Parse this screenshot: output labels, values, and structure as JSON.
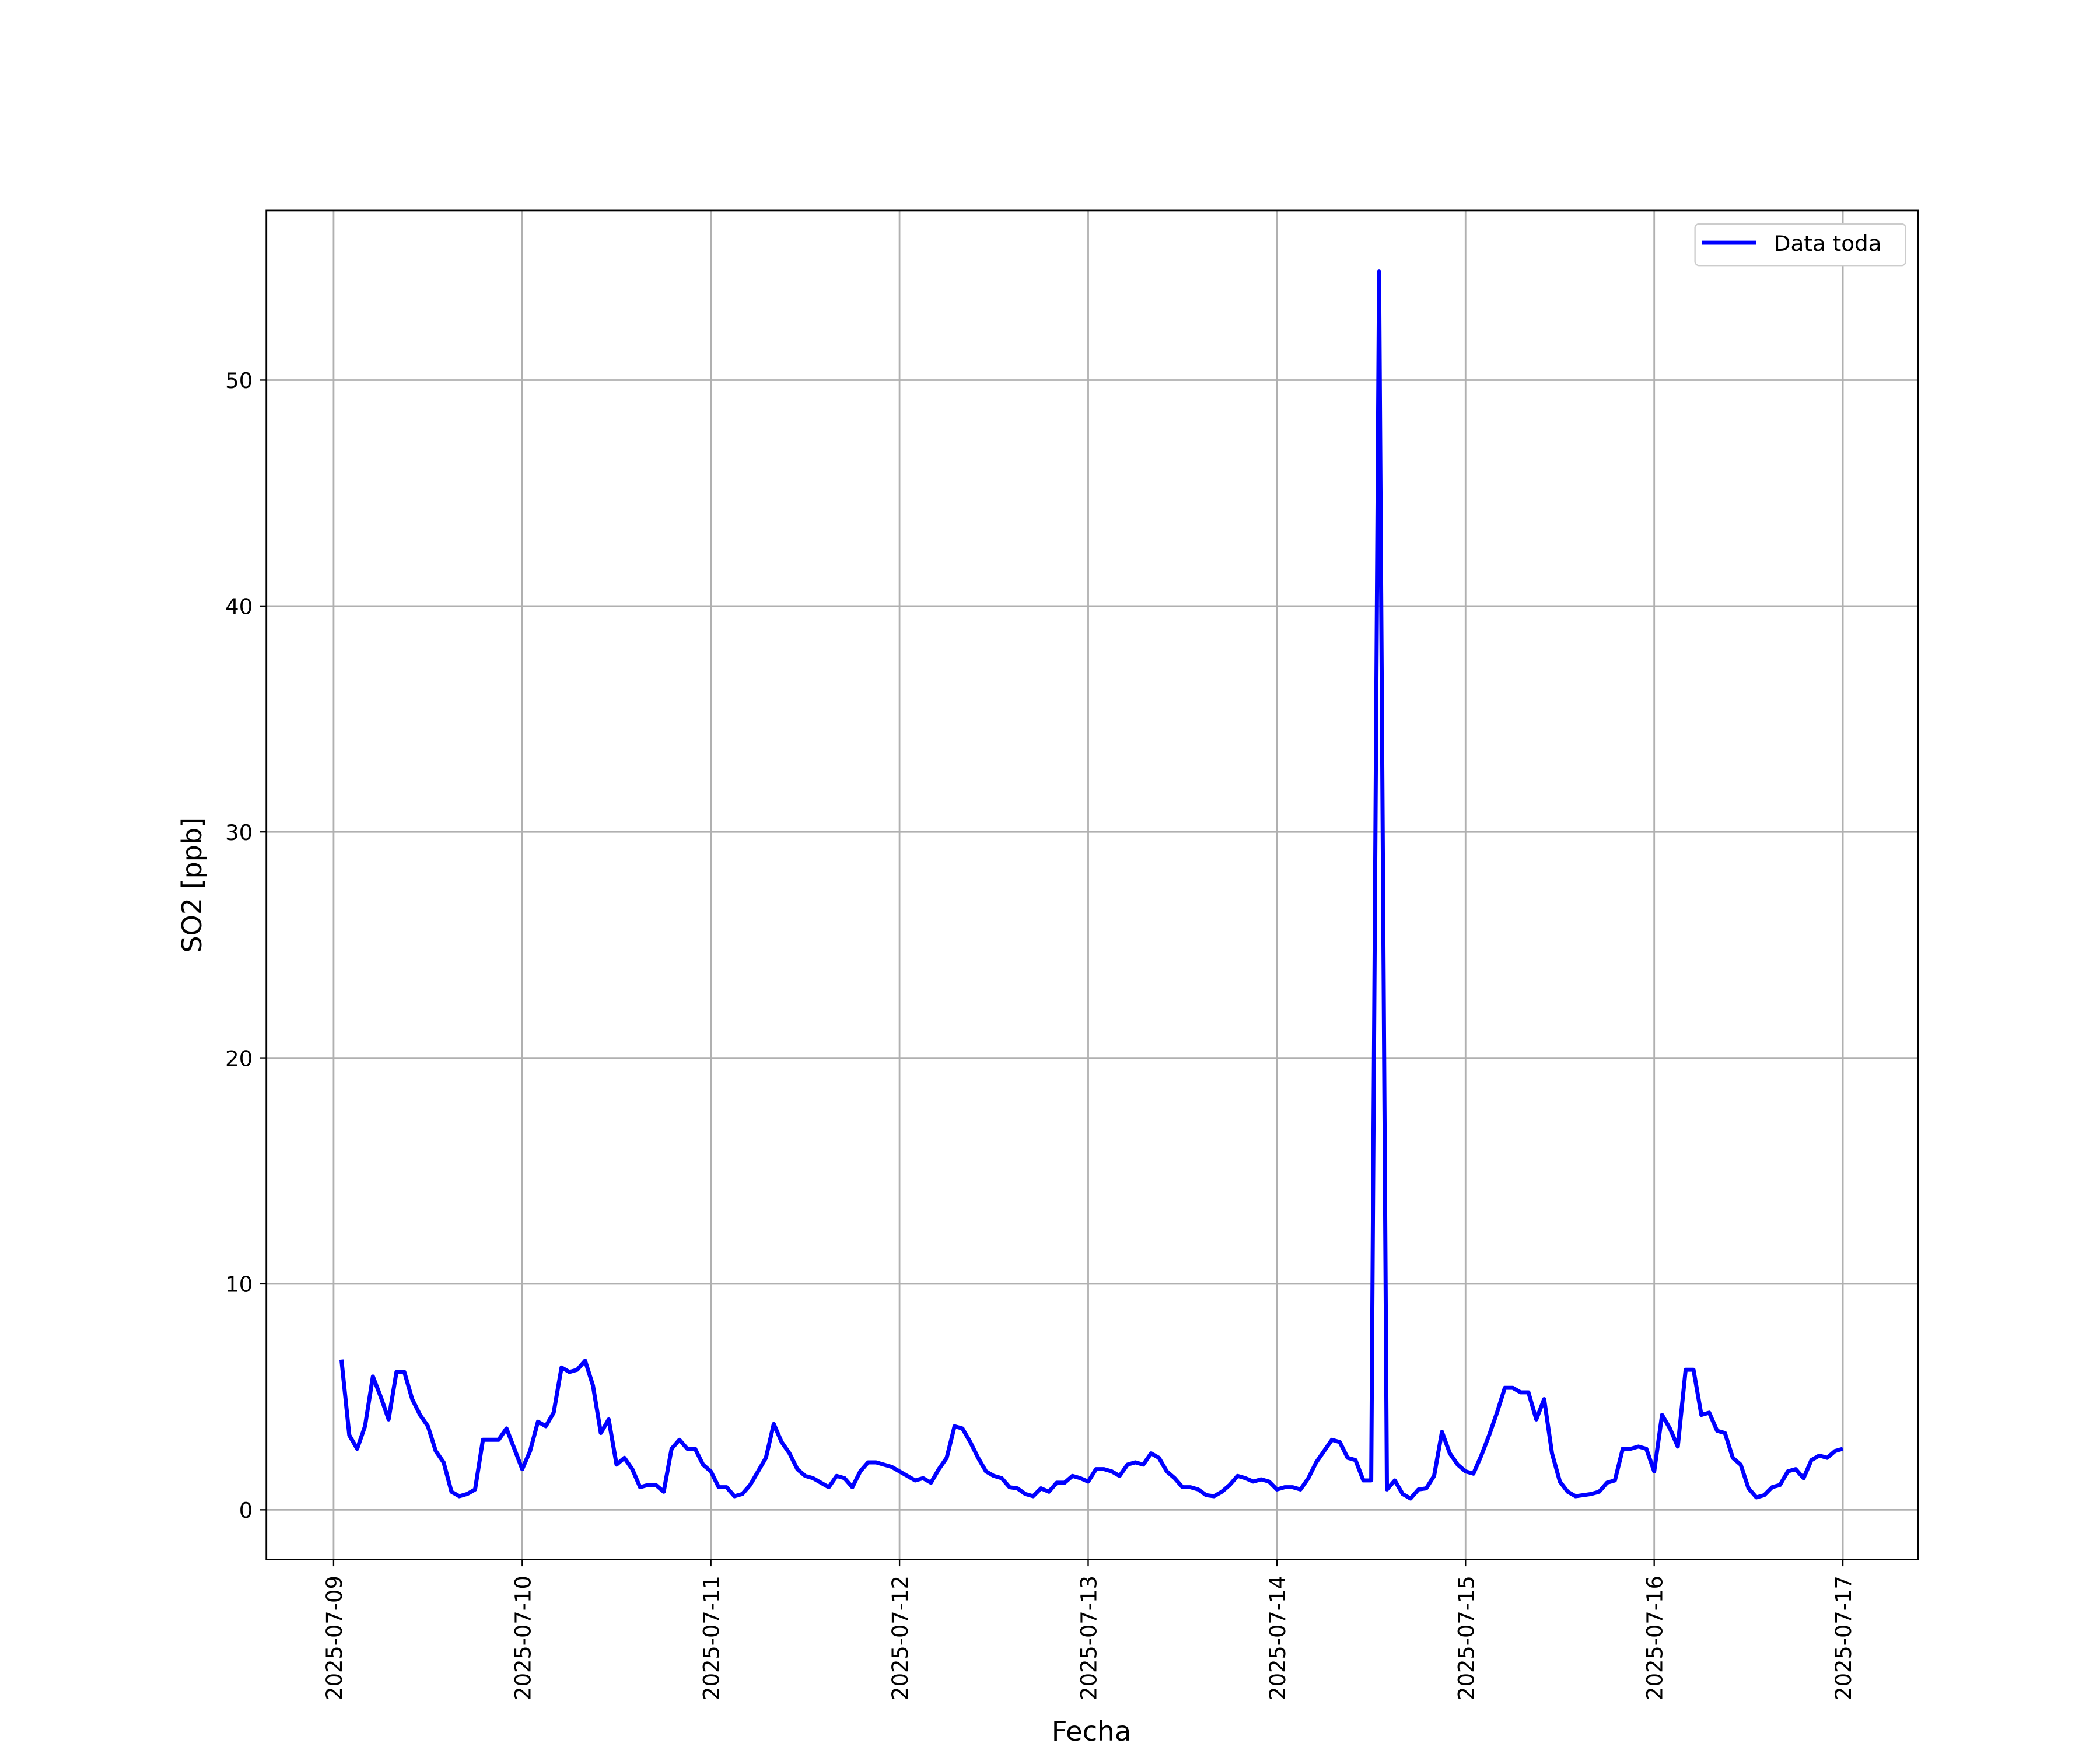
{
  "chart_data": {
    "type": "line",
    "xlabel": "Fecha",
    "ylabel": "SO2 [ppb]",
    "x": [
      "2025-07-09 01:00",
      "2025-07-09 02:00",
      "2025-07-09 03:00",
      "2025-07-09 04:00",
      "2025-07-09 05:00",
      "2025-07-09 06:00",
      "2025-07-09 07:00",
      "2025-07-09 08:00",
      "2025-07-09 09:00",
      "2025-07-09 10:00",
      "2025-07-09 11:00",
      "2025-07-09 12:00",
      "2025-07-09 13:00",
      "2025-07-09 14:00",
      "2025-07-09 15:00",
      "2025-07-09 16:00",
      "2025-07-09 17:00",
      "2025-07-09 18:00",
      "2025-07-09 19:00",
      "2025-07-09 20:00",
      "2025-07-09 21:00",
      "2025-07-09 22:00",
      "2025-07-09 23:00",
      "2025-07-10 00:00",
      "2025-07-10 01:00",
      "2025-07-10 02:00",
      "2025-07-10 03:00",
      "2025-07-10 04:00",
      "2025-07-10 05:00",
      "2025-07-10 06:00",
      "2025-07-10 07:00",
      "2025-07-10 08:00",
      "2025-07-10 09:00",
      "2025-07-10 10:00",
      "2025-07-10 11:00",
      "2025-07-10 12:00",
      "2025-07-10 13:00",
      "2025-07-10 14:00",
      "2025-07-10 15:00",
      "2025-07-10 16:00",
      "2025-07-10 17:00",
      "2025-07-10 18:00",
      "2025-07-10 19:00",
      "2025-07-10 20:00",
      "2025-07-10 21:00",
      "2025-07-10 22:00",
      "2025-07-10 23:00",
      "2025-07-11 00:00",
      "2025-07-11 01:00",
      "2025-07-11 02:00",
      "2025-07-11 03:00",
      "2025-07-11 04:00",
      "2025-07-11 05:00",
      "2025-07-11 06:00",
      "2025-07-11 07:00",
      "2025-07-11 08:00",
      "2025-07-11 09:00",
      "2025-07-11 10:00",
      "2025-07-11 11:00",
      "2025-07-11 12:00",
      "2025-07-11 13:00",
      "2025-07-11 14:00",
      "2025-07-11 15:00",
      "2025-07-11 16:00",
      "2025-07-11 17:00",
      "2025-07-11 18:00",
      "2025-07-11 19:00",
      "2025-07-11 20:00",
      "2025-07-11 21:00",
      "2025-07-11 22:00",
      "2025-07-11 23:00",
      "2025-07-12 00:00",
      "2025-07-12 01:00",
      "2025-07-12 02:00",
      "2025-07-12 03:00",
      "2025-07-12 04:00",
      "2025-07-12 05:00",
      "2025-07-12 06:00",
      "2025-07-12 07:00",
      "2025-07-12 08:00",
      "2025-07-12 09:00",
      "2025-07-12 10:00",
      "2025-07-12 11:00",
      "2025-07-12 12:00",
      "2025-07-12 13:00",
      "2025-07-12 14:00",
      "2025-07-12 15:00",
      "2025-07-12 16:00",
      "2025-07-12 17:00",
      "2025-07-12 18:00",
      "2025-07-12 19:00",
      "2025-07-12 20:00",
      "2025-07-12 21:00",
      "2025-07-12 22:00",
      "2025-07-12 23:00",
      "2025-07-13 00:00",
      "2025-07-13 01:00",
      "2025-07-13 02:00",
      "2025-07-13 03:00",
      "2025-07-13 04:00",
      "2025-07-13 05:00",
      "2025-07-13 06:00",
      "2025-07-13 07:00",
      "2025-07-13 08:00",
      "2025-07-13 09:00",
      "2025-07-13 10:00",
      "2025-07-13 11:00",
      "2025-07-13 12:00",
      "2025-07-13 13:00",
      "2025-07-13 14:00",
      "2025-07-13 15:00",
      "2025-07-13 16:00",
      "2025-07-13 17:00",
      "2025-07-13 18:00",
      "2025-07-13 19:00",
      "2025-07-13 20:00",
      "2025-07-13 21:00",
      "2025-07-13 22:00",
      "2025-07-13 23:00",
      "2025-07-14 00:00",
      "2025-07-14 01:00",
      "2025-07-14 02:00",
      "2025-07-14 03:00",
      "2025-07-14 04:00",
      "2025-07-14 05:00",
      "2025-07-14 06:00",
      "2025-07-14 07:00",
      "2025-07-14 08:00",
      "2025-07-14 09:00",
      "2025-07-14 10:00",
      "2025-07-14 11:00",
      "2025-07-14 12:00",
      "2025-07-14 13:00",
      "2025-07-14 14:00",
      "2025-07-14 15:00",
      "2025-07-14 16:00",
      "2025-07-14 17:00",
      "2025-07-14 18:00",
      "2025-07-14 19:00",
      "2025-07-14 20:00",
      "2025-07-14 21:00",
      "2025-07-14 22:00",
      "2025-07-14 23:00",
      "2025-07-15 00:00",
      "2025-07-15 01:00",
      "2025-07-15 02:00",
      "2025-07-15 03:00",
      "2025-07-15 04:00",
      "2025-07-15 05:00",
      "2025-07-15 06:00",
      "2025-07-15 07:00",
      "2025-07-15 08:00",
      "2025-07-15 09:00",
      "2025-07-15 10:00",
      "2025-07-15 11:00",
      "2025-07-15 12:00",
      "2025-07-15 13:00",
      "2025-07-15 14:00",
      "2025-07-15 15:00",
      "2025-07-15 16:00",
      "2025-07-15 17:00",
      "2025-07-15 18:00",
      "2025-07-15 19:00",
      "2025-07-15 20:00",
      "2025-07-15 21:00",
      "2025-07-15 22:00",
      "2025-07-15 23:00",
      "2025-07-16 00:00",
      "2025-07-16 01:00",
      "2025-07-16 02:00",
      "2025-07-16 03:00",
      "2025-07-16 04:00",
      "2025-07-16 05:00",
      "2025-07-16 06:00",
      "2025-07-16 07:00",
      "2025-07-16 08:00",
      "2025-07-16 09:00",
      "2025-07-16 10:00",
      "2025-07-16 11:00",
      "2025-07-16 12:00",
      "2025-07-16 13:00",
      "2025-07-16 14:00",
      "2025-07-16 15:00",
      "2025-07-16 16:00",
      "2025-07-16 17:00",
      "2025-07-16 18:00",
      "2025-07-16 19:00",
      "2025-07-16 20:00",
      "2025-07-16 21:00",
      "2025-07-16 22:00",
      "2025-07-16 23:00",
      "2025-07-17 00:00"
    ],
    "series": [
      {
        "name": "Data toda",
        "color": "#0000ff",
        "values": [
          6.65,
          3.3,
          2.7,
          3.7,
          5.9,
          5.0,
          4.0,
          6.1,
          6.1,
          4.9,
          4.2,
          3.7,
          2.6,
          2.1,
          0.8,
          0.6,
          0.7,
          0.9,
          3.1,
          3.1,
          3.1,
          3.6,
          2.7,
          1.8,
          2.6,
          3.9,
          3.7,
          4.3,
          6.3,
          6.1,
          6.2,
          6.6,
          5.5,
          3.4,
          4.0,
          2.0,
          2.3,
          1.8,
          1.0,
          1.1,
          1.1,
          0.8,
          2.7,
          3.1,
          2.7,
          2.7,
          2.0,
          1.7,
          1.0,
          1.0,
          0.6,
          0.7,
          1.1,
          1.7,
          2.3,
          3.8,
          3.0,
          2.5,
          1.8,
          1.5,
          1.4,
          1.2,
          1.0,
          1.5,
          1.4,
          1.0,
          1.7,
          2.1,
          2.1,
          2.0,
          1.9,
          1.7,
          1.5,
          1.3,
          1.4,
          1.2,
          1.8,
          2.3,
          3.7,
          3.6,
          3.0,
          2.3,
          1.7,
          1.5,
          1.4,
          1.0,
          0.95,
          0.7,
          0.6,
          0.95,
          0.8,
          1.2,
          1.2,
          1.5,
          1.4,
          1.25,
          1.8,
          1.8,
          1.7,
          1.5,
          2.0,
          2.1,
          2.0,
          2.5,
          2.3,
          1.7,
          1.4,
          1.0,
          1.0,
          0.9,
          0.65,
          0.6,
          0.8,
          1.1,
          1.5,
          1.4,
          1.25,
          1.35,
          1.25,
          0.9,
          1.0,
          1.0,
          0.9,
          1.4,
          2.1,
          2.6,
          3.1,
          3.0,
          2.3,
          2.2,
          1.3,
          1.3,
          54.8,
          0.9,
          1.3,
          0.7,
          0.5,
          0.9,
          0.95,
          1.5,
          3.45,
          2.5,
          2.0,
          1.7,
          1.6,
          2.4,
          3.3,
          4.3,
          5.4,
          5.4,
          5.2,
          5.2,
          4.0,
          4.9,
          2.5,
          1.25,
          0.8,
          0.6,
          0.65,
          0.7,
          0.8,
          1.2,
          1.3,
          2.7,
          2.7,
          2.8,
          2.7,
          1.7,
          4.2,
          3.6,
          2.8,
          6.2,
          6.2,
          4.2,
          4.3,
          3.5,
          3.4,
          2.3,
          2.0,
          0.95,
          0.55,
          0.65,
          1.0,
          1.1,
          1.7,
          1.8,
          1.4,
          2.2,
          2.4,
          2.3,
          2.6,
          2.7
        ]
      }
    ],
    "xlim": [
      "2025-07-08 15:27",
      "2025-07-17 09:33"
    ],
    "xticks": [
      "2025-07-09",
      "2025-07-10",
      "2025-07-11",
      "2025-07-12",
      "2025-07-13",
      "2025-07-14",
      "2025-07-15",
      "2025-07-16",
      "2025-07-17"
    ],
    "ylim": [
      -2.2,
      57.5
    ],
    "yticks": [
      0,
      10,
      20,
      30,
      40,
      50
    ],
    "grid": true,
    "legend": "upper right"
  }
}
